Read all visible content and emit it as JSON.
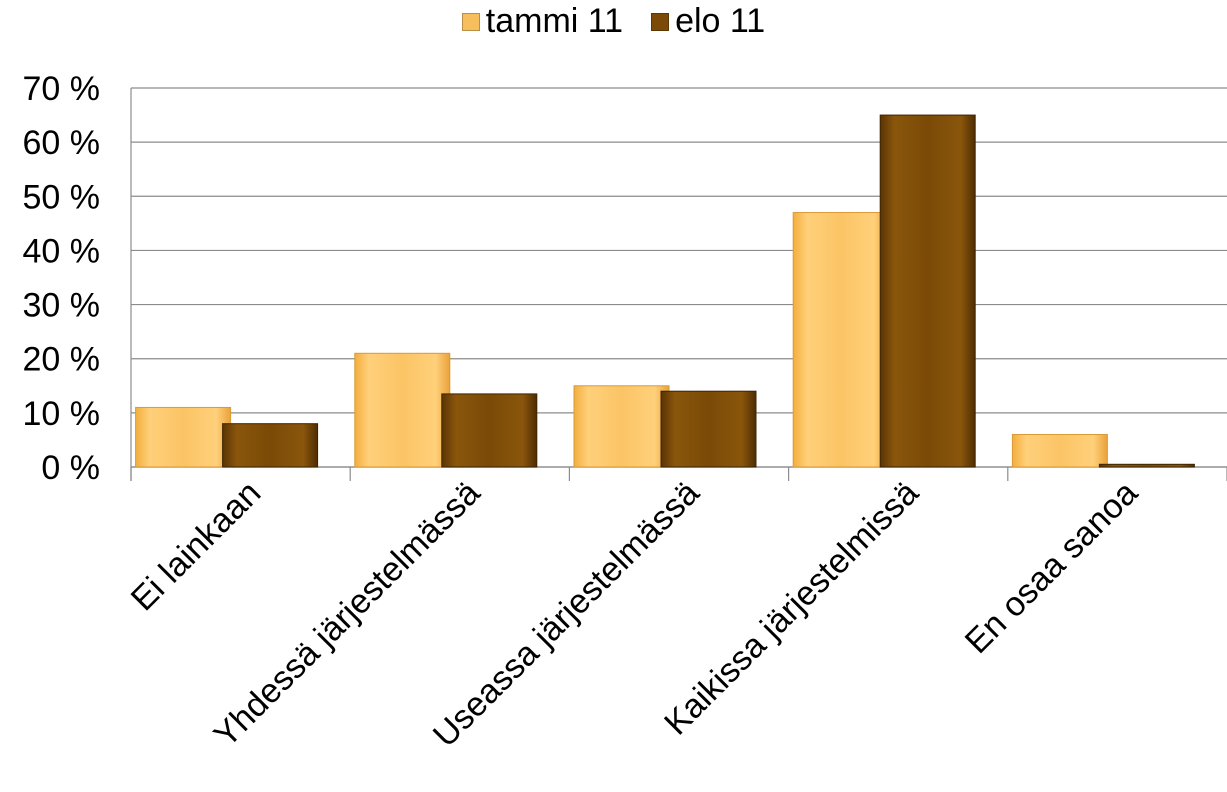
{
  "chart_data": {
    "type": "bar",
    "categories": [
      "Ei lainkaan",
      "Yhdessä järjestelmässä",
      "Useassa järjestelmässä",
      "Kaikissa järjestelmissä",
      "En osaa sanoa"
    ],
    "series": [
      {
        "name": "tammi 11",
        "values": [
          11,
          21,
          15,
          47,
          6
        ],
        "color": "#F7BE5E"
      },
      {
        "name": "elo 11",
        "values": [
          8,
          13.5,
          14,
          65,
          0.5
        ],
        "color": "#7A4A06"
      }
    ],
    "y_ticks": [
      "0 %",
      "10 %",
      "20 %",
      "30 %",
      "40 %",
      "50 %",
      "60 %",
      "70 %"
    ],
    "ylim": [
      0,
      70
    ],
    "grid": true,
    "legend_position": "top-center"
  }
}
